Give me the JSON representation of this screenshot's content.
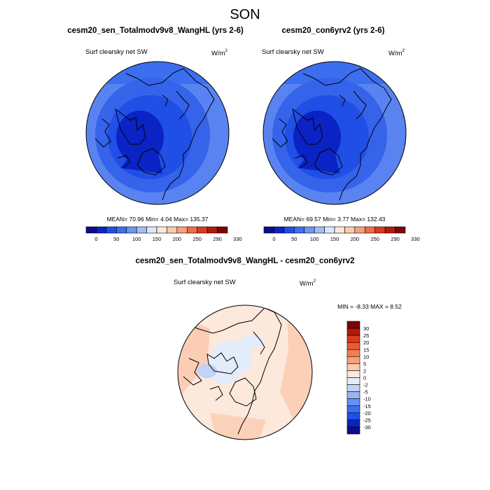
{
  "title": "SON",
  "panels": [
    {
      "title": "cesm20_sen_Totalmodv9v8_WangHL (yrs 2-6)",
      "variable": "Surf clearsky net SW",
      "units_base": "W/m",
      "units_exp": "2",
      "stats": "MEAN=  70.96  Min=   4.04  Max= 135.37",
      "colorbar": {
        "colors": [
          "#0d0d8a",
          "#0b23c4",
          "#1f4fe6",
          "#3c6ef0",
          "#6f95f2",
          "#a3bcf6",
          "#dce8fb",
          "#fde8dc",
          "#fbcab0",
          "#f6a07c",
          "#ef6d4a",
          "#dd3a1d",
          "#b21a0a",
          "#7a0606"
        ],
        "labels": [
          "0",
          "50",
          "100",
          "150",
          "200",
          "250",
          "290",
          "330"
        ]
      }
    },
    {
      "title": "cesm20_con6yrv2 (yrs 2-6)",
      "variable": "Surf clearsky net SW",
      "units_base": "W/m",
      "units_exp": "2",
      "stats": "MEAN=  69.57  Min=   3.77  Max= 132.43",
      "colorbar": {
        "colors": [
          "#0d0d8a",
          "#0b23c4",
          "#1f4fe6",
          "#3c6ef0",
          "#6f95f2",
          "#a3bcf6",
          "#dce8fb",
          "#fde8dc",
          "#fbcab0",
          "#f6a07c",
          "#ef6d4a",
          "#dd3a1d",
          "#b21a0a",
          "#7a0606"
        ],
        "labels": [
          "0",
          "50",
          "100",
          "150",
          "200",
          "250",
          "290",
          "330"
        ]
      }
    },
    {
      "title": "cesm20_sen_Totalmodv9v8_WangHL - cesm20_con6yrv2",
      "variable": "Surf clearsky net SW",
      "units_base": "W/m",
      "units_exp": "2",
      "stats": "MIN =  -8.33 MAX =   8.52",
      "colorbar": {
        "colors": [
          "#7a0606",
          "#b21a0a",
          "#dd3a1d",
          "#ef5a2e",
          "#f47c52",
          "#f6a07c",
          "#fbcab0",
          "#fde8dc",
          "#e2ecfb",
          "#c0d3f8",
          "#97b4f4",
          "#6a8ff0",
          "#3c6ef0",
          "#1f4fe6",
          "#0b23c4",
          "#0d0d8a"
        ],
        "labels": [
          "30",
          "25",
          "20",
          "15",
          "10",
          "5",
          "2",
          "0",
          "-2",
          "-5",
          "-10",
          "-15",
          "-20",
          "-25",
          "-30"
        ]
      }
    }
  ]
}
